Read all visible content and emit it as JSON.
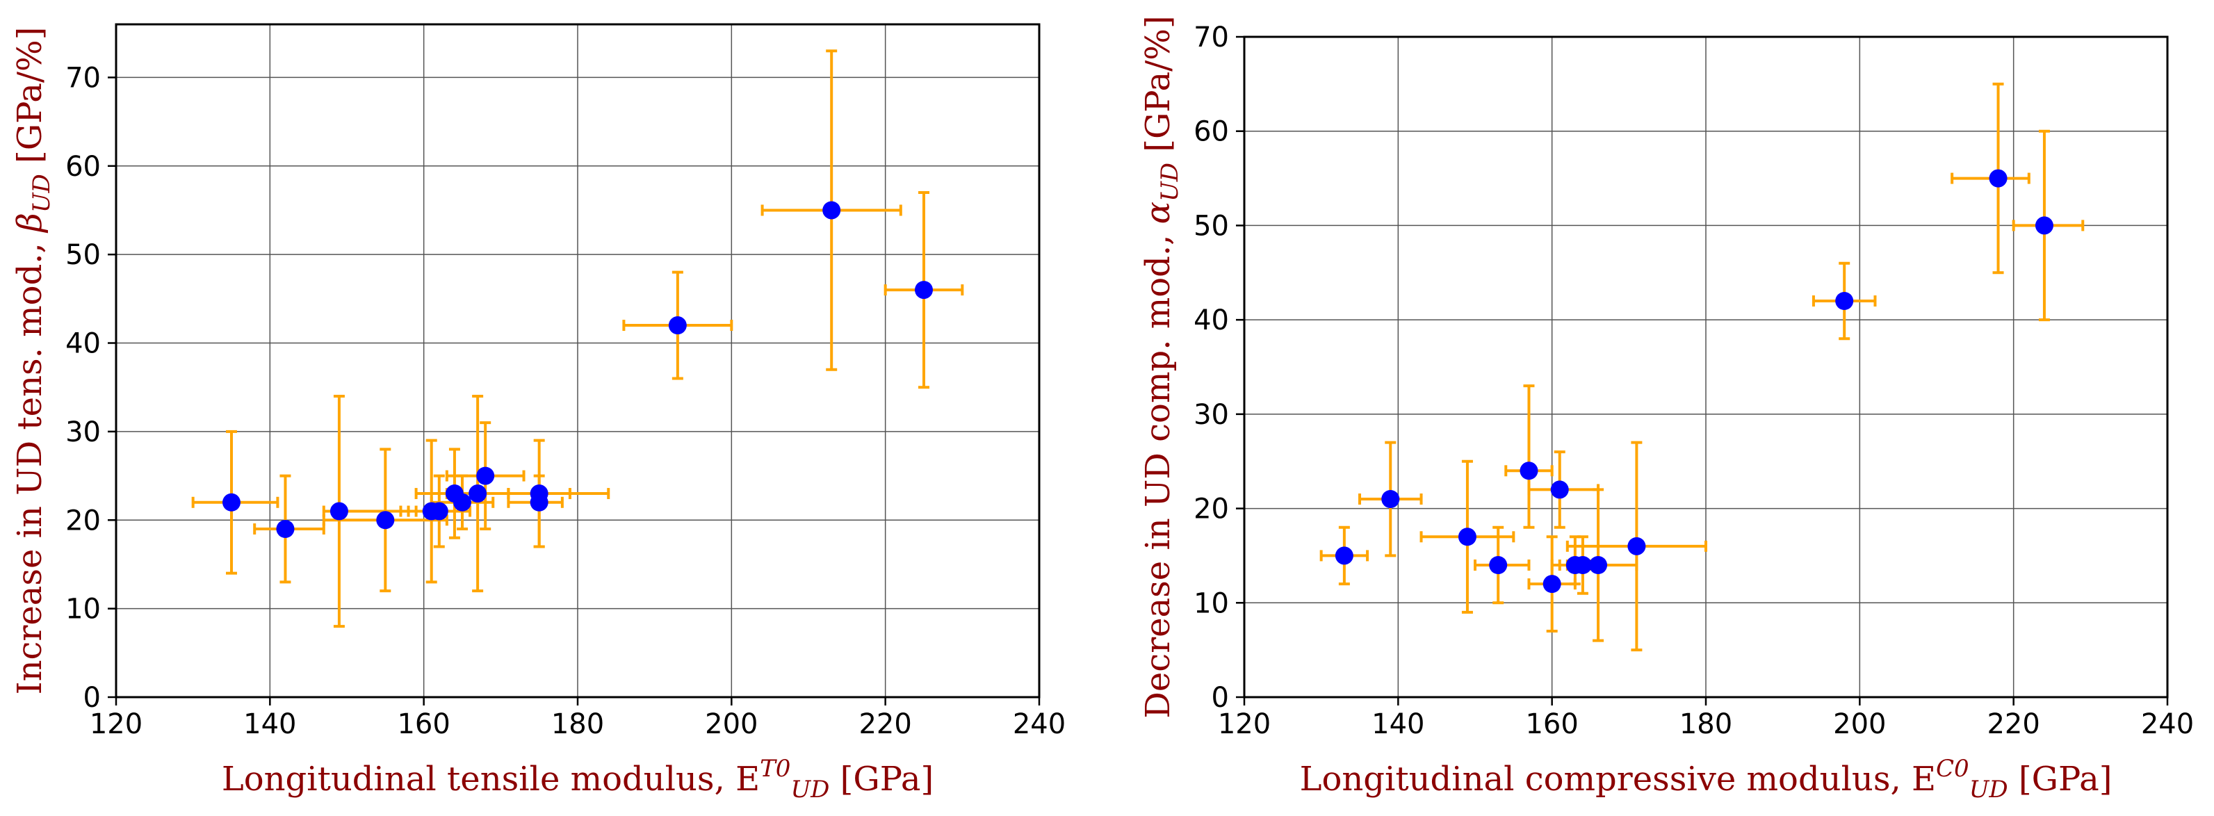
{
  "colors": {
    "marker": "#0000ff",
    "errorbar": "#ffa500",
    "label": "#8b0000",
    "grid": "#555555"
  },
  "chart_data": [
    {
      "type": "scatter",
      "title": "",
      "xlabel": {
        "prefix": "Longitudinal tensile modulus, E",
        "sup": "T0",
        "sub": "UD",
        "suffix": " [GPa]"
      },
      "ylabel": {
        "prefix": "Increase in UD tens. mod., ",
        "greek": "β",
        "sub": "UD",
        "suffix": " [GPa/%]"
      },
      "xlim": [
        120,
        240
      ],
      "ylim": [
        0,
        76
      ],
      "xticks": [
        120,
        140,
        160,
        180,
        200,
        220,
        240
      ],
      "yticks": [
        0,
        10,
        20,
        30,
        40,
        50,
        60,
        70
      ],
      "grid": true,
      "points": [
        {
          "x": 135,
          "y": 22,
          "xerr": [
            130,
            141
          ],
          "yerr": [
            14,
            30
          ]
        },
        {
          "x": 142,
          "y": 19,
          "xerr": [
            138,
            147
          ],
          "yerr": [
            13,
            25
          ]
        },
        {
          "x": 149,
          "y": 21,
          "xerr": [
            147,
            158
          ],
          "yerr": [
            8,
            34
          ]
        },
        {
          "x": 155,
          "y": 20,
          "xerr": [
            147,
            163
          ],
          "yerr": [
            12,
            28
          ]
        },
        {
          "x": 161,
          "y": 21,
          "xerr": [
            157,
            165
          ],
          "yerr": [
            13,
            29
          ]
        },
        {
          "x": 162,
          "y": 21,
          "xerr": [
            159,
            166
          ],
          "yerr": [
            17,
            25
          ]
        },
        {
          "x": 164,
          "y": 23,
          "xerr": [
            159,
            171
          ],
          "yerr": [
            18,
            28
          ]
        },
        {
          "x": 165,
          "y": 22,
          "xerr": [
            161,
            169
          ],
          "yerr": [
            19,
            25
          ]
        },
        {
          "x": 167,
          "y": 23,
          "xerr": [
            163,
            184
          ],
          "yerr": [
            12,
            34
          ]
        },
        {
          "x": 168,
          "y": 25,
          "xerr": [
            163,
            173
          ],
          "yerr": [
            19,
            31
          ]
        },
        {
          "x": 175,
          "y": 23,
          "xerr": [
            171,
            179
          ],
          "yerr": [
            17,
            29
          ]
        },
        {
          "x": 175,
          "y": 22,
          "xerr": [
            171,
            178
          ],
          "yerr": [
            17,
            25
          ]
        },
        {
          "x": 193,
          "y": 42,
          "xerr": [
            186,
            200
          ],
          "yerr": [
            36,
            48
          ]
        },
        {
          "x": 213,
          "y": 55,
          "xerr": [
            204,
            222
          ],
          "yerr": [
            37,
            73
          ]
        },
        {
          "x": 225,
          "y": 46,
          "xerr": [
            220,
            230
          ],
          "yerr": [
            35,
            57
          ]
        }
      ]
    },
    {
      "type": "scatter",
      "title": "",
      "xlabel": {
        "prefix": "Longitudinal compressive modulus, E",
        "sup": "C0",
        "sub": "UD",
        "suffix": " [GPa]"
      },
      "ylabel": {
        "prefix": "Decrease in UD comp. mod., ",
        "greek": "α",
        "sub": "UD",
        "suffix": " [GPa/%]"
      },
      "xlim": [
        120,
        240
      ],
      "ylim": [
        0,
        70
      ],
      "xticks": [
        120,
        140,
        160,
        180,
        200,
        220,
        240
      ],
      "yticks": [
        0,
        10,
        20,
        30,
        40,
        50,
        60,
        70
      ],
      "grid": true,
      "points": [
        {
          "x": 133,
          "y": 15,
          "xerr": [
            130,
            136
          ],
          "yerr": [
            12,
            18
          ]
        },
        {
          "x": 139,
          "y": 21,
          "xerr": [
            135,
            143
          ],
          "yerr": [
            15,
            27
          ]
        },
        {
          "x": 149,
          "y": 17,
          "xerr": [
            143,
            155
          ],
          "yerr": [
            9,
            25
          ]
        },
        {
          "x": 153,
          "y": 14,
          "xerr": [
            150,
            157
          ],
          "yerr": [
            10,
            18
          ]
        },
        {
          "x": 157,
          "y": 24,
          "xerr": [
            154,
            160
          ],
          "yerr": [
            18,
            33
          ]
        },
        {
          "x": 160,
          "y": 12,
          "xerr": [
            157,
            163
          ],
          "yerr": [
            7,
            17
          ]
        },
        {
          "x": 161,
          "y": 22,
          "xerr": [
            157,
            166
          ],
          "yerr": [
            18,
            26
          ]
        },
        {
          "x": 163,
          "y": 14,
          "xerr": [
            160,
            165
          ],
          "yerr": [
            12,
            17
          ]
        },
        {
          "x": 164,
          "y": 14,
          "xerr": [
            161,
            166
          ],
          "yerr": [
            11,
            17
          ]
        },
        {
          "x": 166,
          "y": 14,
          "xerr": [
            162,
            171
          ],
          "yerr": [
            6,
            22
          ]
        },
        {
          "x": 171,
          "y": 16,
          "xerr": [
            162,
            180
          ],
          "yerr": [
            5,
            27
          ]
        },
        {
          "x": 198,
          "y": 42,
          "xerr": [
            194,
            202
          ],
          "yerr": [
            38,
            46
          ]
        },
        {
          "x": 218,
          "y": 55,
          "xerr": [
            212,
            222
          ],
          "yerr": [
            45,
            65
          ]
        },
        {
          "x": 224,
          "y": 50,
          "xerr": [
            220,
            229
          ],
          "yerr": [
            40,
            60
          ]
        }
      ]
    }
  ]
}
